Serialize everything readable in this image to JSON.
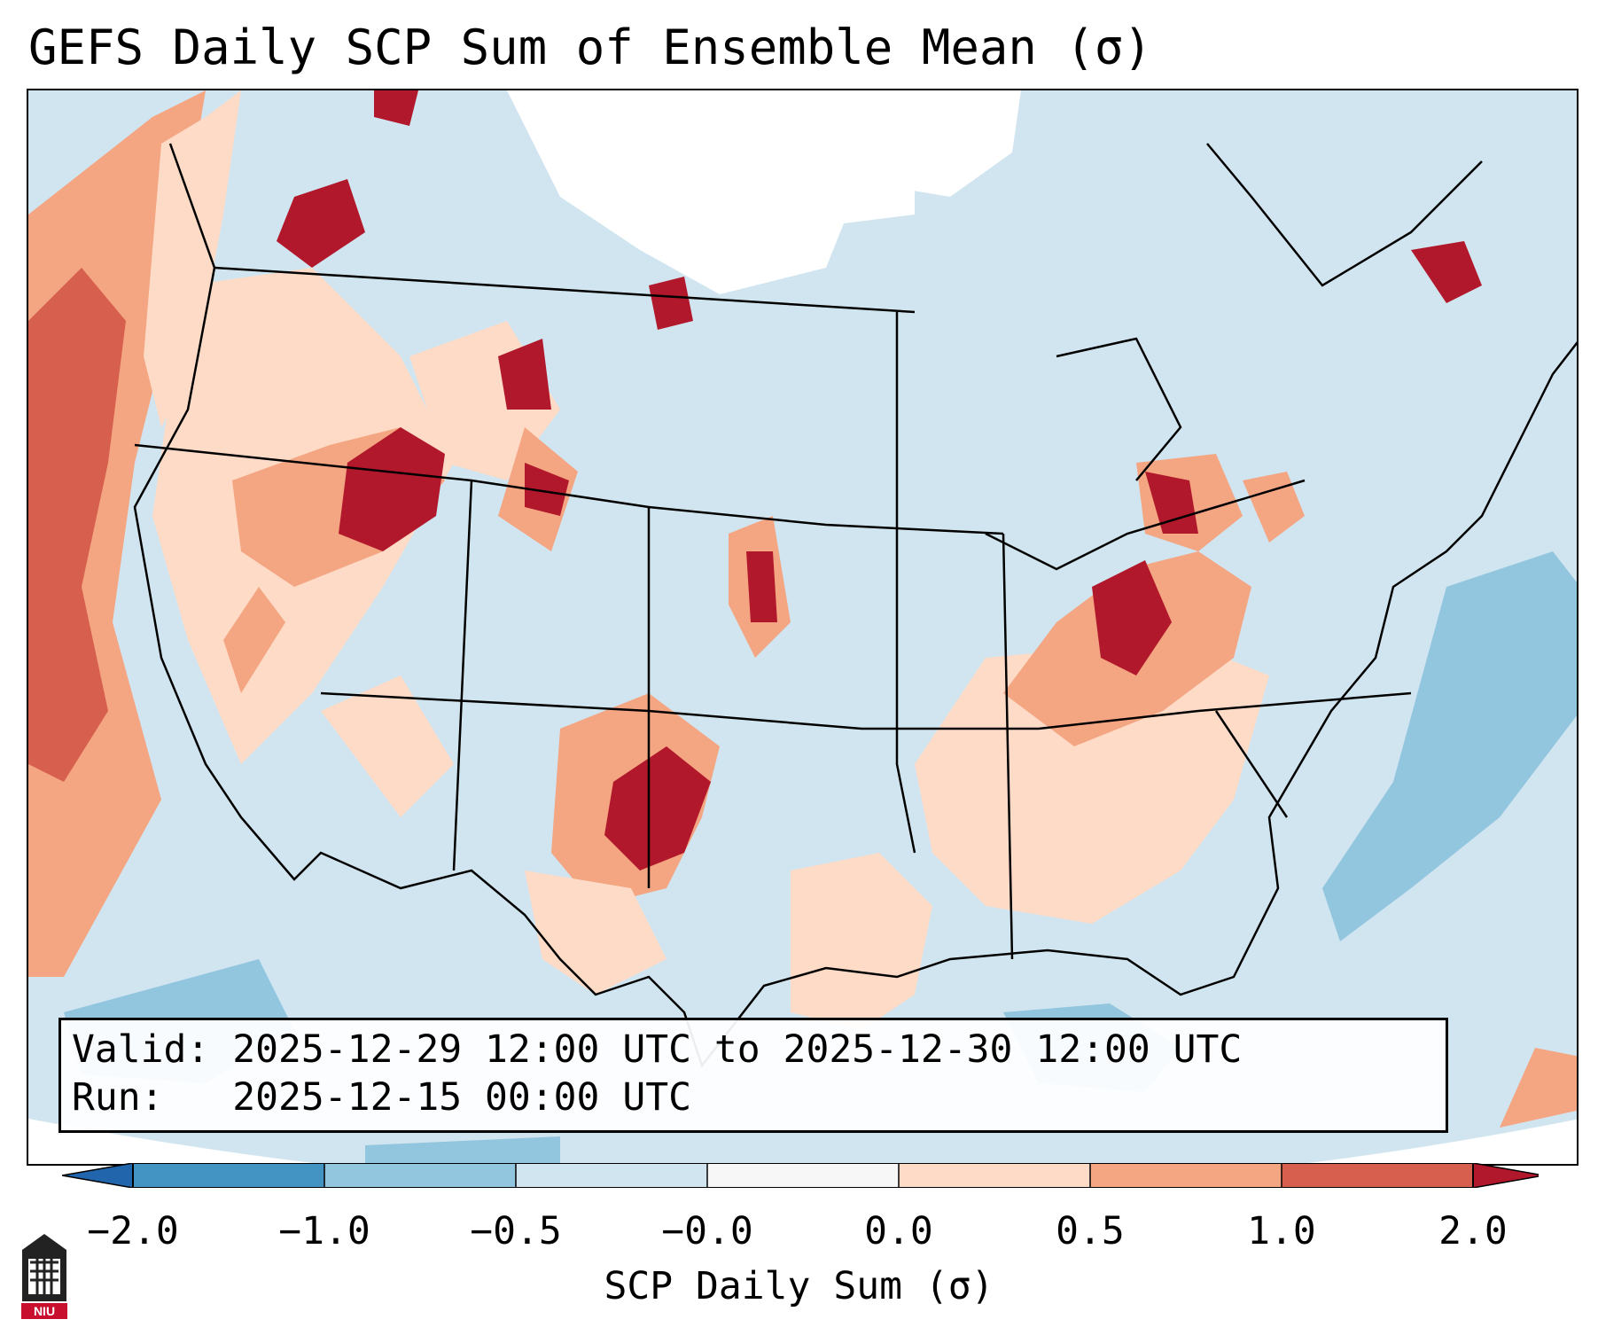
{
  "title": "GEFS Daily SCP Sum of Ensemble Mean (σ)",
  "info": {
    "valid_label": "Valid:",
    "valid_value": "2025-12-29 12:00 UTC to 2025-12-30 12:00 UTC",
    "run_label": "Run:",
    "run_value": "2025-12-15 00:00 UTC"
  },
  "colorbar": {
    "label": "SCP Daily Sum (σ)",
    "ticks": [
      "−2.0",
      "−1.0",
      "−0.5",
      "−0.0",
      "0.0",
      "0.5",
      "1.0",
      "2.0"
    ],
    "colors": [
      "#4393c3",
      "#92c5de",
      "#d1e5f0",
      "#f7f7f7",
      "#fddbc7",
      "#f4a582",
      "#d6604d",
      "#b2182b"
    ],
    "extend_min_color": "#2166ac",
    "extend_max_color": "#b2182b"
  },
  "logo": {
    "text": "NIU"
  },
  "map_legend": {
    "background_color": "#d1e5f0",
    "land_outline_color": "#000000"
  }
}
